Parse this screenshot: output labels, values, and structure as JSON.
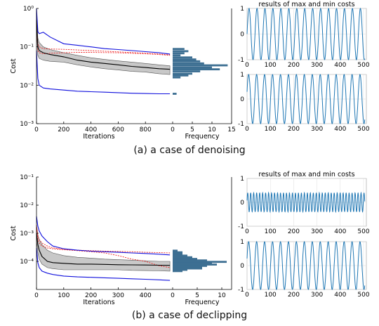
{
  "captions": {
    "a": "(a) a case of denoising",
    "b": "(b) a case of declipping"
  },
  "colors": {
    "band": "#c8c8c8",
    "envelope": "#1010dd",
    "mean": "#000000",
    "red": "#ee2222",
    "hist": "#3d6f92",
    "wave": "#1f77b4",
    "grid": "#dddddd"
  },
  "chart_data": [
    {
      "id": "a-cost",
      "type": "line",
      "xlabel": "Iterations",
      "ylabel": "Cost",
      "yscale": "log",
      "xlim": [
        0,
        1000
      ],
      "ylim": [
        0.001,
        1
      ],
      "xticks": [
        "0",
        "200",
        "400",
        "600",
        "800"
      ],
      "yticks": [
        {
          "v": 0.001,
          "label": "10⁻³"
        },
        {
          "v": 0.01,
          "label": "10⁻²"
        },
        {
          "v": 0.1,
          "label": "10⁻¹"
        },
        {
          "v": 1,
          "label": "10⁰"
        }
      ],
      "x": [
        0,
        10,
        20,
        50,
        100,
        200,
        300,
        400,
        500,
        600,
        700,
        800,
        900,
        980
      ],
      "band_upper": [
        0.9,
        0.17,
        0.13,
        0.1,
        0.085,
        0.07,
        0.06,
        0.052,
        0.047,
        0.043,
        0.04,
        0.037,
        0.034,
        0.032
      ],
      "band_lower": [
        0.3,
        0.06,
        0.05,
        0.045,
        0.042,
        0.04,
        0.034,
        0.03,
        0.027,
        0.025,
        0.023,
        0.022,
        0.02,
        0.019
      ],
      "mean": [
        0.5,
        0.1,
        0.08,
        0.07,
        0.063,
        0.055,
        0.045,
        0.04,
        0.037,
        0.034,
        0.031,
        0.029,
        0.027,
        0.026
      ],
      "upper_env": [
        1,
        0.25,
        0.22,
        0.24,
        0.18,
        0.12,
        0.11,
        0.1,
        0.09,
        0.085,
        0.08,
        0.075,
        0.07,
        0.065
      ],
      "lower_env": [
        0.08,
        0.015,
        0.01,
        0.0085,
        0.008,
        0.0075,
        0.007,
        0.0068,
        0.0066,
        0.0064,
        0.0062,
        0.0061,
        0.006,
        0.006
      ],
      "red_lines": [
        [
          0.5,
          0.12,
          0.1,
          0.09,
          0.088,
          0.086,
          0.083,
          0.08,
          0.077,
          0.074,
          0.071,
          0.068,
          0.065,
          0.062
        ],
        [
          0.4,
          0.08,
          0.07,
          0.066,
          0.068,
          0.07,
          0.072,
          0.072,
          0.071,
          0.07,
          0.068,
          0.066,
          0.063,
          0.06
        ]
      ]
    },
    {
      "id": "a-hist",
      "type": "bar",
      "orientation": "horizontal",
      "xlabel": "Frequency",
      "xlim": [
        0,
        15
      ],
      "xticks": [
        "0",
        "5",
        "10",
        "15"
      ],
      "bins": [
        {
          "y": 0.088,
          "v": 3
        },
        {
          "y": 0.077,
          "v": 4
        },
        {
          "y": 0.068,
          "v": 3
        },
        {
          "y": 0.06,
          "v": 2
        },
        {
          "y": 0.053,
          "v": 5
        },
        {
          "y": 0.047,
          "v": 6
        },
        {
          "y": 0.042,
          "v": 7
        },
        {
          "y": 0.037,
          "v": 8
        },
        {
          "y": 0.033,
          "v": 14
        },
        {
          "y": 0.029,
          "v": 10
        },
        {
          "y": 0.026,
          "v": 12
        },
        {
          "y": 0.023,
          "v": 7
        },
        {
          "y": 0.02,
          "v": 5
        },
        {
          "y": 0.018,
          "v": 4
        },
        {
          "y": 0.016,
          "v": 2
        },
        {
          "y": 0.006,
          "v": 1
        }
      ]
    },
    {
      "id": "a-wave-max",
      "type": "line",
      "title": "results of max and min costs",
      "xlim": [
        0,
        512
      ],
      "ylim": [
        -1,
        1
      ],
      "xticks": [
        "0",
        "100",
        "200",
        "300",
        "400",
        "500"
      ],
      "yticks": [
        "-1",
        "0",
        "1"
      ],
      "amplitude": 1,
      "cycles": 15,
      "phase": 0
    },
    {
      "id": "a-wave-min",
      "type": "line",
      "xlim": [
        0,
        512
      ],
      "ylim": [
        -1,
        1
      ],
      "xticks": [
        "0",
        "100",
        "200",
        "300",
        "400",
        "500"
      ],
      "yticks": [
        "-1",
        "0",
        "1"
      ],
      "amplitude": 1,
      "cycles": 15,
      "phase": 0.3
    },
    {
      "id": "b-cost",
      "type": "line",
      "xlabel": "Iterations",
      "ylabel": "Cost",
      "yscale": "log",
      "xlim": [
        0,
        500
      ],
      "ylim": [
        1e-05,
        0.1
      ],
      "xticks": [
        "0",
        "100",
        "200",
        "300",
        "400"
      ],
      "yticks": [
        {
          "v": 0.0001,
          "label": "10⁻⁴"
        },
        {
          "v": 0.001,
          "label": "10⁻³"
        },
        {
          "v": 0.01,
          "label": "10⁻²"
        },
        {
          "v": 0.1,
          "label": "10⁻¹"
        }
      ],
      "x": [
        0,
        5,
        10,
        20,
        40,
        60,
        100,
        150,
        200,
        250,
        300,
        350,
        400,
        450,
        490
      ],
      "band_upper": [
        0.002,
        0.0009,
        0.0006,
        0.0004,
        0.00025,
        0.0002,
        0.00016,
        0.00014,
        0.00013,
        0.00012,
        0.000115,
        0.00011,
        0.000105,
        0.0001,
        0.0001
      ],
      "band_lower": [
        0.0006,
        0.0002,
        0.00012,
        8e-05,
        6e-05,
        5.5e-05,
        5e-05,
        5e-05,
        5e-05,
        5e-05,
        5e-05,
        4.8e-05,
        4.7e-05,
        4.6e-05,
        4.5e-05
      ],
      "mean": [
        0.001,
        0.0004,
        0.00025,
        0.00015,
        0.0001,
        9e-05,
        8.5e-05,
        8e-05,
        8e-05,
        7.8e-05,
        7.6e-05,
        7.5e-05,
        7.4e-05,
        7.3e-05,
        7.2e-05
      ],
      "upper_env": [
        0.004,
        0.0018,
        0.0012,
        0.0008,
        0.0005,
        0.00035,
        0.00028,
        0.00025,
        0.00023,
        0.00022,
        0.00021,
        0.0002,
        0.00019,
        0.00018,
        0.00017
      ],
      "lower_env": [
        0.0003,
        9e-05,
        6e-05,
        4.5e-05,
        3.8e-05,
        3.4e-05,
        3e-05,
        2.8e-05,
        2.7e-05,
        2.6e-05,
        2.5e-05,
        2.4e-05,
        2.3e-05,
        2.2e-05,
        2.1e-05
      ],
      "red_lines": [
        [
          0.002,
          0.0008,
          0.0006,
          0.00045,
          0.00035,
          0.0003,
          0.00027,
          0.00025,
          0.00024,
          0.00023,
          0.000225,
          0.00022,
          0.00021,
          0.000205,
          0.0002
        ],
        [
          0.0015,
          0.0006,
          0.00045,
          0.00035,
          0.0003,
          0.00028,
          0.00026,
          0.00024,
          0.00022,
          0.0002,
          0.00016,
          0.00012,
          0.0001,
          7e-05,
          6e-05
        ]
      ]
    },
    {
      "id": "b-hist",
      "type": "bar",
      "orientation": "horizontal",
      "xlabel": "Frequency",
      "xlim": [
        0,
        12
      ],
      "xticks": [
        "0",
        "5",
        "10"
      ],
      "bins": [
        {
          "y": 0.00024,
          "v": 1
        },
        {
          "y": 0.00021,
          "v": 2
        },
        {
          "y": 0.00018,
          "v": 2
        },
        {
          "y": 0.00016,
          "v": 3
        },
        {
          "y": 0.00014,
          "v": 4
        },
        {
          "y": 0.000122,
          "v": 5
        },
        {
          "y": 0.000108,
          "v": 7
        },
        {
          "y": 9.6e-05,
          "v": 11
        },
        {
          "y": 8.6e-05,
          "v": 8
        },
        {
          "y": 7.7e-05,
          "v": 9
        },
        {
          "y": 6.9e-05,
          "v": 7
        },
        {
          "y": 6.2e-05,
          "v": 6
        },
        {
          "y": 5.6e-05,
          "v": 6
        },
        {
          "y": 5e-05,
          "v": 3
        },
        {
          "y": 4.5e-05,
          "v": 2
        }
      ]
    },
    {
      "id": "b-wave-max",
      "type": "line",
      "title": "results of max and min costs",
      "xlim": [
        0,
        512
      ],
      "ylim": [
        -1,
        1
      ],
      "xticks": [
        "0",
        "100",
        "200",
        "300",
        "400",
        "500"
      ],
      "yticks": [
        "-1",
        "0",
        "1"
      ],
      "amplitude": 0.4,
      "cycles": 40,
      "phase": 0.2
    },
    {
      "id": "b-wave-min",
      "type": "line",
      "xlim": [
        0,
        512
      ],
      "ylim": [
        -1,
        1
      ],
      "xticks": [
        "0",
        "100",
        "200",
        "300",
        "400",
        "500"
      ],
      "yticks": [
        "-1",
        "0",
        "1"
      ],
      "amplitude": 1,
      "cycles": 15,
      "phase": 0.3
    }
  ]
}
